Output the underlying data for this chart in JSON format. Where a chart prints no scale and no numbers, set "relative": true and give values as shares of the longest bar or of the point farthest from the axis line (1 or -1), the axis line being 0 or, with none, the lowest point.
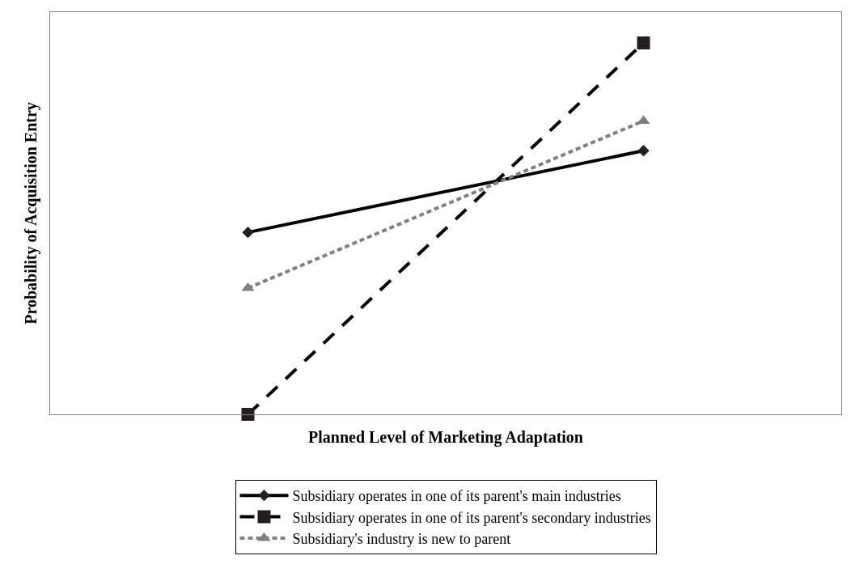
{
  "chart_data": {
    "type": "line",
    "relative": true,
    "xlabel": "Planned Level of Marketing Adaptation",
    "ylabel": "Probability of Acquisition Entry",
    "categories": [
      null,
      null
    ],
    "legend": "bottom",
    "series": [
      {
        "name": "Subsidiary operates in one of its parent's main industries",
        "color": "#000000",
        "values": [
          0.49,
          0.71
        ],
        "marker": "diamond",
        "line_style": "solid"
      },
      {
        "name": "Subsidiary operates in one of its parent's secondary industries",
        "color": "#000000",
        "values": [
          0.0,
          1
        ],
        "marker": "square",
        "line_style": "dashed"
      },
      {
        "name": "Subsidiary's industry is new to parent",
        "color": "#808080",
        "values": [
          0.34,
          0.79
        ],
        "marker": "triangle",
        "line_style": "dotted"
      }
    ]
  }
}
